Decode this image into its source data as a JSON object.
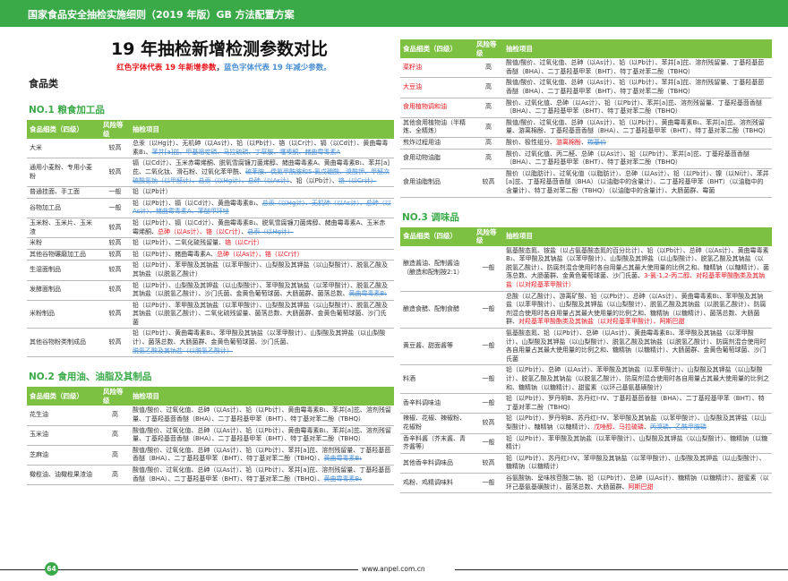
{
  "header": {
    "title": "国家食品安全抽检实施细则（2019 年版）GB 方法配置方案"
  },
  "main": {
    "title": "19 年抽检新增检测参数对比",
    "legend_red": "红色字体代表 19 年新增参数",
    "legend_sep": "，",
    "legend_blue": "蓝色字体代表 19 年减少参数。",
    "category": "食品类"
  },
  "colors": {
    "brand_green": "#3aaa48",
    "table_header": "#7dc142",
    "added": "#e8141b",
    "removed": "#4a8fd4"
  },
  "columns": [
    "食品细类（四级）",
    "风险等级",
    "抽检项目"
  ],
  "sections": [
    {
      "title": "NO.1 粮食加工品",
      "column": "left",
      "rows": [
        {
          "name": "大米",
          "risk": "较高",
          "items": [
            {
              "t": "总汞（以Hg计）、无机砷（以As计）、铅（以Pb计）、铬（以Cr计）、镉（以Cd计）、黄曲霉毒素B₁、"
            },
            {
              "t": "苯并[a]芘、甲基嘧啶磷、马拉硫磷、丁草胺、噻嗪酮、赭曲霉毒素A",
              "c": "del"
            }
          ]
        },
        {
          "name": "通用小麦粉、专用小麦粉",
          "risk": "较高",
          "items": [
            {
              "t": "镉（以Cd计）、玉米赤霉烯酮、脱氧雪腐镰刀菌烯醇、赭曲霉毒素A、黄曲霉毒素B₁、苯并[a]芘、二氧化钛、滑石粉、过氧化苯甲酰、"
            },
            {
              "t": "硫苯胺、偶氮甲酰胺和5-氯戊硼酸、溴酸钾、甲醛次硫酸氢钠（以甲醛计）、总汞（以Hg计）、总砷（以As计）",
              "c": "del"
            },
            {
              "t": "、铅（以Pb计）、"
            },
            {
              "t": "铬（以Cr计）",
              "c": "del"
            }
          ]
        },
        {
          "name": "普通挂面、手工面",
          "risk": "一般",
          "items": [
            {
              "t": "铅（以Pb计）"
            }
          ]
        },
        {
          "name": "谷物加工品",
          "risk": "一般",
          "items": [
            {
              "t": "铅（以Pb计）、镉（以Cd计）、黄曲霉毒素B₁、"
            },
            {
              "t": "总汞（以Hg计）、无机砷（以As计）、总砷（以As计）、赭曲霉毒素A、苯醚甲环唑",
              "c": "del"
            }
          ]
        },
        {
          "name": "玉米粉、玉米片、玉米渣",
          "risk": "较高",
          "items": [
            {
              "t": "铅（以Pb计）、镉（以Cd计）、黄曲霉毒素B₁、脱氧雪腐镰刀菌烯醇、赭曲霉毒素A、玉米赤霉烯酮、"
            },
            {
              "t": "总砷（以As计）、铬（以Cr计）",
              "c": "add"
            },
            {
              "t": "、"
            },
            {
              "t": "总汞（以Hg计）",
              "c": "del"
            }
          ]
        },
        {
          "name": "米粉",
          "risk": "较高",
          "items": [
            {
              "t": "铅（以Pb计）、二氧化硫残留量、"
            },
            {
              "t": "铬（以Cr计）",
              "c": "add"
            }
          ]
        },
        {
          "name": "其他谷物碾磨加工品",
          "risk": "较高",
          "items": [
            {
              "t": "铅（以Pb计）、赭曲霉毒素A、"
            },
            {
              "t": "总砷（以As计）、铬（以Cr计）",
              "c": "add"
            }
          ]
        },
        {
          "name": "生湿面制品",
          "risk": "较高",
          "items": [
            {
              "t": "铅（以Pb计）、苯甲酸及其钠盐（以苯甲酸计）、山梨酸及其钾盐（以山梨酸计）、脱氢乙酸及其钠盐（以脱氢乙酸计）"
            }
          ]
        },
        {
          "name": "发酵面制品",
          "risk": "较高",
          "items": [
            {
              "t": "铅（以Pb计）、山梨酸及其钾盐（以山梨酸计）、苯甲酸及其钠盐（以苯甲酸计）、脱氢乙酸及其钠盐（以脱氢乙酸计）、沙门氏菌、金黄色葡萄球菌、大肠菌群、菌落总数、"
            },
            {
              "t": "黄曲霉毒素B₁",
              "c": "del"
            }
          ]
        },
        {
          "name": "米粉制品",
          "risk": "较高",
          "items": [
            {
              "t": "铅（以Pb计）、苯甲酸及其钠盐（以苯甲酸计）、山梨酸及其钾盐（以山梨酸计）、脱氢乙酸及其钠盐（以脱氢乙酸计）、二氧化硫残留量、菌落总数、大肠菌群、金黄色葡萄球菌、沙门氏菌"
            }
          ]
        },
        {
          "name": "其他谷物粉类制成品",
          "risk": "较高",
          "items": [
            {
              "t": "铅（以Pb计）、黄曲霉毒素B₁、苯甲酸及其钠盐（以苯甲酸计）、山梨酸及其钾盐（以山梨酸计）、菌落总数、大肠菌群、金黄色葡萄球菌、沙门氏菌、"
            },
            {
              "t": "脱氢乙酸及其钠盐（以脱氢乙酸计）",
              "c": "del"
            }
          ]
        }
      ]
    },
    {
      "title": "NO.2 食用油、油脂及其制品",
      "column": "left",
      "rows": [
        {
          "name": "花生油",
          "risk": "高",
          "items": [
            {
              "t": "酸值/酸价、过氧化值、总砷（以As计）、铅（以Pb计）、黄曲霉毒素B₁、苯并[a]芘、溶剂残留量、丁基羟基茴香醚（BHA）、二丁基羟基甲苯（BHT）、特丁基对苯二酚（TBHQ）"
            }
          ]
        },
        {
          "name": "玉米油",
          "risk": "高",
          "items": [
            {
              "t": "酸值/酸价、过氧化值、总砷（以As计）、铅（以Pb计）、黄曲霉毒素B₁、苯并[a]芘、溶剂残留量、丁基羟基茴香醚（BHA）、二丁基羟基甲苯（BHT）、特丁基对苯二酚（TBHQ）"
            }
          ]
        },
        {
          "name": "芝麻油",
          "risk": "高",
          "items": [
            {
              "t": "酸值/酸价、过氧化值、总砷（以As计）、铅（以Pb计）、苯并[a]芘、溶剂残留量、丁基羟基茴香醚（BHA）、二丁基羟基甲苯（BHT）、特丁基对苯二酚（TBHQ）、"
            },
            {
              "t": "黄曲霉毒素B₁",
              "c": "del"
            }
          ]
        },
        {
          "name": "橄榄油、油橄榄果渣油",
          "risk": "高",
          "items": [
            {
              "t": "酸值/酸价、过氧化值、总砷（以As计）、铅（以Pb计）、苯并[a]芘、溶剂残留量、丁基羟基茴香醚（BHA）、二丁基羟基甲苯（BHT）、特丁基对苯二酚（TBHQ）、"
            },
            {
              "t": "黄曲霉毒素B₁",
              "c": "del"
            }
          ]
        }
      ]
    },
    {
      "title": "",
      "column": "right",
      "rows": [
        {
          "name": "菜籽油",
          "name_c": "add",
          "risk": "高",
          "items": [
            {
              "t": "酸值/酸价、过氧化值、总砷（以As计）、铅（以Pb计）、苯并[a]芘、溶剂残留量、丁基羟基茴香醚（BHA）、二丁基羟基甲苯（BHT）、特丁基对苯二酚（TBHQ）"
            }
          ]
        },
        {
          "name": "大豆油",
          "name_c": "add",
          "risk": "高",
          "items": [
            {
              "t": "酸值/酸价、过氧化值、总砷（以As计）、铅（以Pb计）、苯并[a]芘、溶剂残留量、丁基羟基茴香醚（BHA）、二丁基羟基甲苯（BHT）、特丁基对苯二酚（TBHQ）"
            }
          ]
        },
        {
          "name": "食用植物调和油",
          "name_c": "add",
          "risk": "高",
          "items": [
            {
              "t": "酸价、过氧化值、总砷（以As计）、铅（以Pb计）、苯并[a]芘、溶剂残留量、丁基羟基茴香醚（BHA）、二丁基羟基甲苯（BHT）、特丁基对苯二酚（TBHQ）"
            }
          ]
        },
        {
          "name": "其他食用植物油（半精炼、全精炼）",
          "risk": "高",
          "items": [
            {
              "t": "酸值/酸价、过氧化值、总砷（以As计）、铅（以Pb计）、黄曲霉毒素B₁、苯并[a]芘、溶剂残留量、游离棉酚、丁基羟基茴香醚（BHA）、二丁基羟基甲苯（BHT）、特丁基对苯二酚（TBHQ）"
            }
          ]
        },
        {
          "name": "煎炸过程用油",
          "risk": "高",
          "items": [
            {
              "t": "酸价、极性组分、"
            },
            {
              "t": "游离棉酚",
              "c": "add"
            },
            {
              "t": "、"
            },
            {
              "t": "羰基价",
              "c": "del"
            }
          ]
        },
        {
          "name": "食用动物油脂",
          "risk": "高",
          "items": [
            {
              "t": "酸价、过氧化值、丙二醛、总砷（以As计）、铅（以Pb计）、苯并[a]芘、丁基羟基茴香醚（BHA）、二丁基羟基甲苯（BHT）、特丁基对苯二酚（TBHQ）"
            }
          ]
        },
        {
          "name": "食用油脂制品",
          "risk": "较高",
          "items": [
            {
              "t": "酸价（以脂肪计）、过氧化值（以脂肪计）、总砷（以As计）、铅（以Pb计）、镍（以Ni计）、苯并[a]芘、丁基羟基茴香醚（BHA）（以油脂中的含量计）、二丁基羟基甲苯（BHT）（以油脂中的含量计）、特丁基对苯二酚（TBHQ）（以油脂中的含量计）、大肠菌群、霉菌"
            }
          ]
        }
      ]
    },
    {
      "title": "NO.3 调味品",
      "column": "right",
      "rows": [
        {
          "name": "酿造酱油、配制酱油（酿造和配制按2:1）",
          "risk": "一般",
          "items": [
            {
              "t": "氨基酸态氮、铵盐（以占氨基酸态氮的百分比计）、铅（以Pb计）、总砷（以As计）、黄曲霉毒素B₁、苯甲酸及其钠盐（以苯甲酸计）、山梨酸及其钾盐（以山梨酸计）、脱氢乙酸及其钠盐（以脱氢乙酸计）、防腐剂混合使用时各自用量占其最大使用量的比例之和、糖精钠（以糖精计）、菌落总数、大肠菌群、金黄色葡萄球菌、沙门氏菌、"
            },
            {
              "t": "3-氯-1,2-丙二醇、对羟基苯甲酸酯类及其钠盐（以对羟基苯甲酸计）",
              "c": "add"
            }
          ]
        },
        {
          "name": "酿造食醋、配制食醋",
          "risk": "一般",
          "items": [
            {
              "t": "总酸（以乙酸计）、游离矿酸、铅（以Pb计）、总砷（以As计）、黄曲霉毒素B₁、苯甲酸及其钠盐（以苯甲酸计）、山梨酸及其钾盐（以山梨酸计）、脱氢乙酸及其钠盐（以脱氢乙酸计）、防腐剂混合使用时各自用量占其最大使用量的比例之和、糖精钠（以糖精计）、菌落总数、大肠菌群、"
            },
            {
              "t": "对羟基苯甲酸酯类及其钠盐（以对羟基苯甲酸计）、阿斯巴甜",
              "c": "add"
            }
          ]
        },
        {
          "name": "黄豆酱、甜面酱等",
          "risk": "一般",
          "items": [
            {
              "t": "氨基酸态氮、铅（以Pb计）、总砷（以As计）、黄曲霉毒素B₁、苯甲酸及其钠盐（以苯甲酸计）、山梨酸及其钾盐（以山梨酸计）、脱氢乙酸及其钠盐（以脱氢乙酸计）、防腐剂混合使用时各自用量占其最大使用量的比例之和、糖精钠（以糖精计）、大肠菌群、金黄色葡萄球菌、沙门氏菌"
            }
          ]
        },
        {
          "name": "料酒",
          "risk": "一般",
          "items": [
            {
              "t": "铅（以Pb计）、总砷（以As计）、苯甲酸及其钠盐（以苯甲酸计）、山梨酸及其钾盐（以山梨酸计）、脱氢乙酸及其钠盐（以脱氢乙酸计）、防腐剂混合使用时各自用量占其最大使用量的比例之和、糖精钠（以糖精计）、甜蜜素（以环己基氨基磺酸计）"
            }
          ]
        },
        {
          "name": "香辛料调味油",
          "risk": "一般",
          "items": [
            {
              "t": "铅（以Pb计）、罗丹明B、苏丹红I-IV、丁基羟基茴香醚（BHA）、二丁基羟基甲苯（BHT）、特丁基对苯二酚（TBHQ）"
            }
          ]
        },
        {
          "name": "辣椒、花椒、辣椒粉、花椒粉",
          "risk": "较高",
          "items": [
            {
              "t": "铅（以Pb计）、罗丹明B、苏丹红I-IV、苯甲酸及其钠盐（以苯甲酸计）、山梨酸及其钾盐（以山梨酸计）、糖精钠（以糖精计）、"
            },
            {
              "t": "戊唑醇、马拉硫磷",
              "c": "add"
            },
            {
              "t": "、"
            },
            {
              "t": "丙溴磷、乙酰甲胺磷",
              "c": "del"
            }
          ]
        },
        {
          "name": "香辛料酱（芥末酱、青芥酱等）",
          "risk": "一般",
          "items": [
            {
              "t": "铅（以Pb计）、苯甲酸及其钠盐（以苯甲酸计）、山梨酸及其钾盐（以山梨酸计）、糖精钠（以糖精计）"
            }
          ]
        },
        {
          "name": "其他香辛料调味品",
          "risk": "较高",
          "items": [
            {
              "t": "铅（以Pb计）、苏丹红I-IV、苯甲酸及其钠盐（以苯甲酸计）、山梨酸及其钾盐（以山梨酸计）、糖精钠（以糖精计）"
            }
          ]
        },
        {
          "name": "鸡粉、鸡精调味料",
          "risk": "一般",
          "items": [
            {
              "t": "谷氨酸钠、呈味核苷酸二钠、铅（以Pb计）、总砷（以As计）、糖精钠（以糖精计）、甜蜜素（以环己基氨基磺酸计）、菌落总数、大肠菌群、"
            },
            {
              "t": "阿斯巴甜",
              "c": "add"
            }
          ]
        }
      ]
    }
  ],
  "footer": {
    "page_number": "64",
    "website": "www.anpel.com.cn"
  }
}
